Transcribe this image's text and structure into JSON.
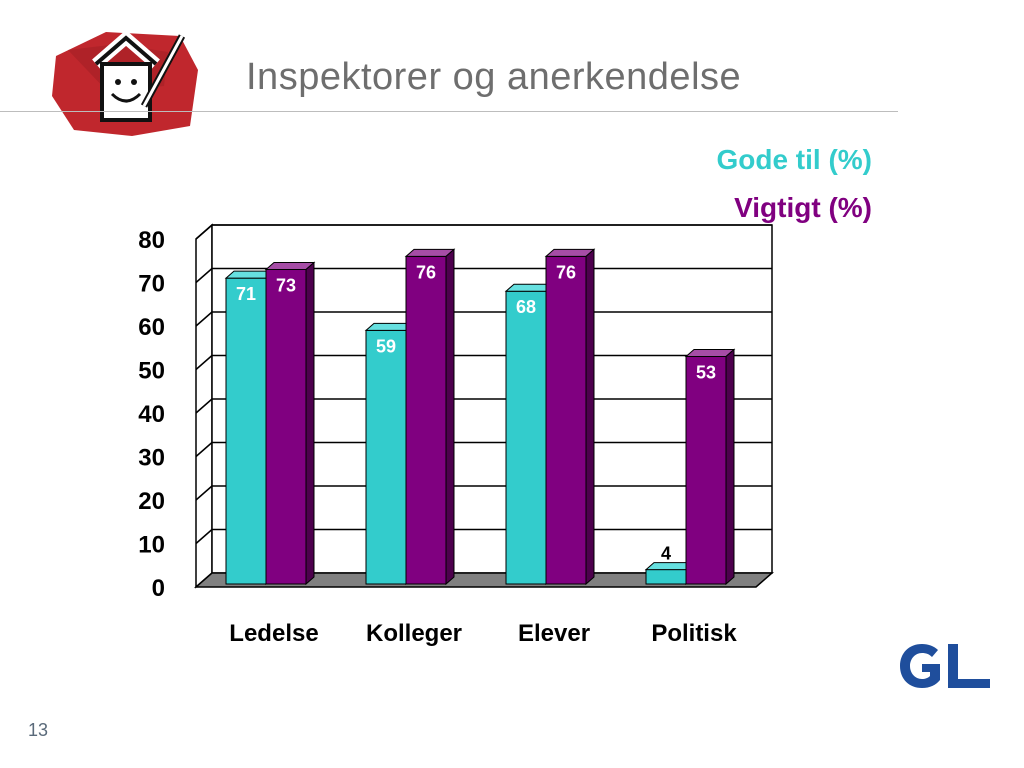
{
  "slide": {
    "title": "Inspektorer og anerkendelse",
    "page_number": "13"
  },
  "legend": {
    "gode": "Gode til (%)",
    "vigtigt": "Vigtigt (%)"
  },
  "colors": {
    "gode": "#33cccc",
    "vigtigt": "#800080",
    "gl_logo": "#1f4e9c",
    "logo_red": "#c0272d"
  },
  "icons": {
    "house_logo": "house-smiley-pencil-icon",
    "gl_logo": "gl-logo-icon"
  },
  "chart_data": {
    "type": "bar",
    "categories": [
      "Ledelse",
      "Kolleger",
      "Elever",
      "Politisk"
    ],
    "series": [
      {
        "name": "Gode til (%)",
        "values": [
          71,
          59,
          68,
          4
        ]
      },
      {
        "name": "Vigtigt (%)",
        "values": [
          73,
          76,
          76,
          53
        ]
      }
    ],
    "ylim": [
      0,
      80
    ],
    "yticks": [
      "0",
      "10",
      "20",
      "30",
      "40",
      "50",
      "60",
      "70",
      "80"
    ],
    "grid": true,
    "legend_position": "top-right",
    "three_d": true
  }
}
